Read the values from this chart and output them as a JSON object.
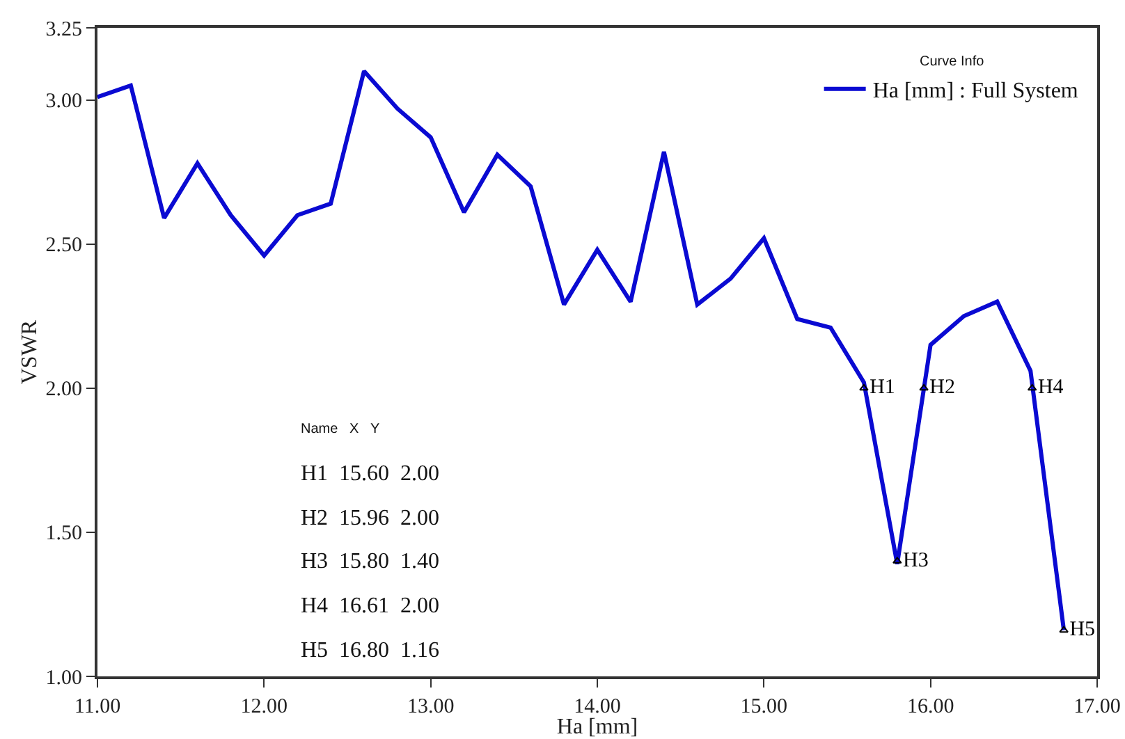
{
  "chart_data": {
    "type": "line",
    "xlabel": "Ha [mm]",
    "ylabel": "VSWR",
    "legend_title": "Curve Info",
    "legend": "top right",
    "grid": false,
    "marker": "none",
    "line_style": "solid",
    "xlim": [
      11,
      17
    ],
    "ylim": [
      1,
      3.25
    ],
    "xticks": [
      {
        "value": 11,
        "label": "11.00"
      },
      {
        "value": 12,
        "label": "12.00"
      },
      {
        "value": 13,
        "label": "13.00"
      },
      {
        "value": 14,
        "label": "14.00"
      },
      {
        "value": 15,
        "label": "15.00"
      },
      {
        "value": 16,
        "label": "16.00"
      },
      {
        "value": 17,
        "label": "17.00"
      }
    ],
    "yticks": [
      {
        "value": 1,
        "label": "1.00"
      },
      {
        "value": 1.5,
        "label": "1.50"
      },
      {
        "value": 2,
        "label": "2.00"
      },
      {
        "value": 2.5,
        "label": "2.50"
      },
      {
        "value": 3,
        "label": "3.00"
      },
      {
        "value": 3.25,
        "label": "3.25"
      }
    ],
    "series": [
      {
        "name": "Ha [mm] : Full System",
        "color": "#0a0ad2",
        "x": [
          11,
          11.2,
          11.4,
          11.6,
          11.8,
          12,
          12.2,
          12.4,
          12.6,
          12.8,
          13,
          13.2,
          13.4,
          13.6,
          13.8,
          14,
          14.2,
          14.4,
          14.6,
          14.8,
          15,
          15.2,
          15.4,
          15.6,
          15.8,
          16,
          16.2,
          16.4,
          16.6,
          16.8
        ],
        "values": [
          3.01,
          3.05,
          2.59,
          2.78,
          2.6,
          2.46,
          2.6,
          2.64,
          3.1,
          2.97,
          2.87,
          2.61,
          2.81,
          2.7,
          2.29,
          2.48,
          2.3,
          2.82,
          2.29,
          2.38,
          2.52,
          2.24,
          2.21,
          2.02,
          1.39,
          2.15,
          2.25,
          2.3,
          2.06,
          1.16
        ]
      },
      {
        "type": "scatter",
        "marker": "triangle",
        "color": "#000000",
        "x": [
          15.6,
          15.96,
          15.8,
          16.61,
          16.8
        ],
        "values": [
          2,
          2,
          1.4,
          2,
          1.16
        ],
        "value_labels": [
          "H1",
          "H2",
          "H3",
          "H4",
          "H5"
        ]
      }
    ],
    "annotations": [
      "Name   X   Y",
      "H1  15.60  2.00",
      "H2  15.96  2.00",
      "H3  15.80  1.40",
      "H4  16.61  2.00",
      "H5  16.80  1.16"
    ]
  }
}
